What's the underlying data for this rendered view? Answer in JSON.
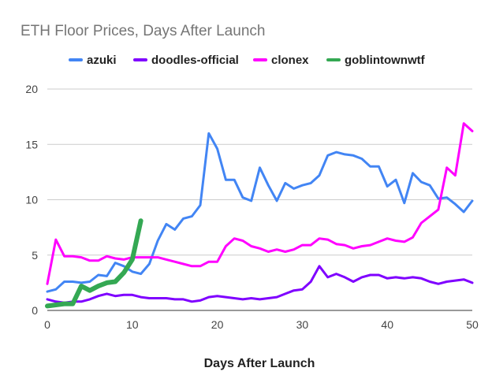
{
  "chart_data": {
    "type": "line",
    "title": "ETH Floor Prices, Days After Launch",
    "xlabel": "Days After Launch",
    "ylabel": "",
    "xlim": [
      0,
      50
    ],
    "ylim": [
      0,
      20
    ],
    "xticks": [
      0,
      10,
      20,
      30,
      40,
      50
    ],
    "yticks": [
      0,
      5,
      10,
      15,
      20
    ],
    "grid": "horizontal",
    "legend": "top",
    "series": [
      {
        "name": "azuki",
        "color": "#4285f4",
        "x": [
          0,
          1,
          2,
          3,
          4,
          5,
          6,
          7,
          8,
          9,
          10,
          11,
          12,
          13,
          14,
          15,
          16,
          17,
          18,
          19,
          20,
          21,
          22,
          23,
          24,
          25,
          26,
          27,
          28,
          29,
          30,
          31,
          32,
          33,
          34,
          35,
          36,
          37,
          38,
          39,
          40,
          41,
          42,
          43,
          44,
          45,
          46,
          47,
          48,
          49,
          50
        ],
        "values": [
          1.7,
          1.9,
          2.6,
          2.6,
          2.5,
          2.6,
          3.2,
          3.1,
          4.3,
          4.0,
          3.5,
          3.3,
          4.2,
          6.3,
          7.8,
          7.3,
          8.3,
          8.5,
          9.5,
          16.0,
          14.6,
          11.8,
          11.8,
          10.2,
          9.9,
          12.9,
          11.3,
          9.9,
          11.5,
          11.0,
          11.3,
          11.5,
          12.2,
          14.0,
          14.3,
          14.1,
          14.0,
          13.7,
          13.0,
          13.0,
          11.2,
          11.8,
          9.7,
          12.4,
          11.6,
          11.3,
          10.1,
          10.2,
          9.6,
          8.9,
          9.9
        ]
      },
      {
        "name": "doodles-official",
        "color": "#7f00ff",
        "x": [
          0,
          1,
          2,
          3,
          4,
          5,
          6,
          7,
          8,
          9,
          10,
          11,
          12,
          13,
          14,
          15,
          16,
          17,
          18,
          19,
          20,
          21,
          22,
          23,
          24,
          25,
          26,
          27,
          28,
          29,
          30,
          31,
          32,
          33,
          34,
          35,
          36,
          37,
          38,
          39,
          40,
          41,
          42,
          43,
          44,
          45,
          46,
          47,
          48,
          49,
          50
        ],
        "values": [
          1.0,
          0.8,
          0.7,
          0.8,
          0.8,
          1.0,
          1.3,
          1.5,
          1.3,
          1.4,
          1.4,
          1.2,
          1.1,
          1.1,
          1.1,
          1.0,
          1.0,
          0.8,
          0.9,
          1.2,
          1.3,
          1.2,
          1.1,
          1.0,
          1.1,
          1.0,
          1.1,
          1.2,
          1.5,
          1.8,
          1.9,
          2.6,
          4.0,
          3.0,
          3.3,
          3.0,
          2.6,
          3.0,
          3.2,
          3.2,
          2.9,
          3.0,
          2.9,
          3.0,
          2.9,
          2.6,
          2.4,
          2.6,
          2.7,
          2.8,
          2.5
        ]
      },
      {
        "name": "clonex",
        "color": "#ff00ff",
        "x": [
          0,
          1,
          2,
          3,
          4,
          5,
          6,
          7,
          8,
          9,
          10,
          11,
          12,
          13,
          14,
          15,
          16,
          17,
          18,
          19,
          20,
          21,
          22,
          23,
          24,
          25,
          26,
          27,
          28,
          29,
          30,
          31,
          32,
          33,
          34,
          35,
          36,
          37,
          38,
          39,
          40,
          41,
          42,
          43,
          44,
          45,
          46,
          47,
          48,
          49,
          50
        ],
        "values": [
          2.4,
          6.4,
          4.9,
          4.9,
          4.8,
          4.5,
          4.5,
          4.9,
          4.7,
          4.6,
          4.8,
          4.8,
          4.8,
          4.8,
          4.6,
          4.4,
          4.2,
          4.0,
          4.0,
          4.4,
          4.4,
          5.8,
          6.5,
          6.3,
          5.8,
          5.6,
          5.3,
          5.5,
          5.3,
          5.5,
          5.9,
          5.9,
          6.5,
          6.4,
          6.0,
          5.9,
          5.6,
          5.8,
          5.9,
          6.2,
          6.5,
          6.3,
          6.2,
          6.6,
          7.9,
          8.5,
          9.1,
          12.9,
          12.2,
          16.9,
          16.2
        ]
      },
      {
        "name": "goblintownwtf",
        "color": "#34a853",
        "x": [
          0,
          1,
          2,
          3,
          4,
          5,
          6,
          7,
          8,
          9,
          10,
          11
        ],
        "values": [
          0.4,
          0.5,
          0.6,
          0.6,
          2.2,
          1.8,
          2.2,
          2.5,
          2.6,
          3.4,
          4.6,
          8.1
        ]
      }
    ]
  }
}
